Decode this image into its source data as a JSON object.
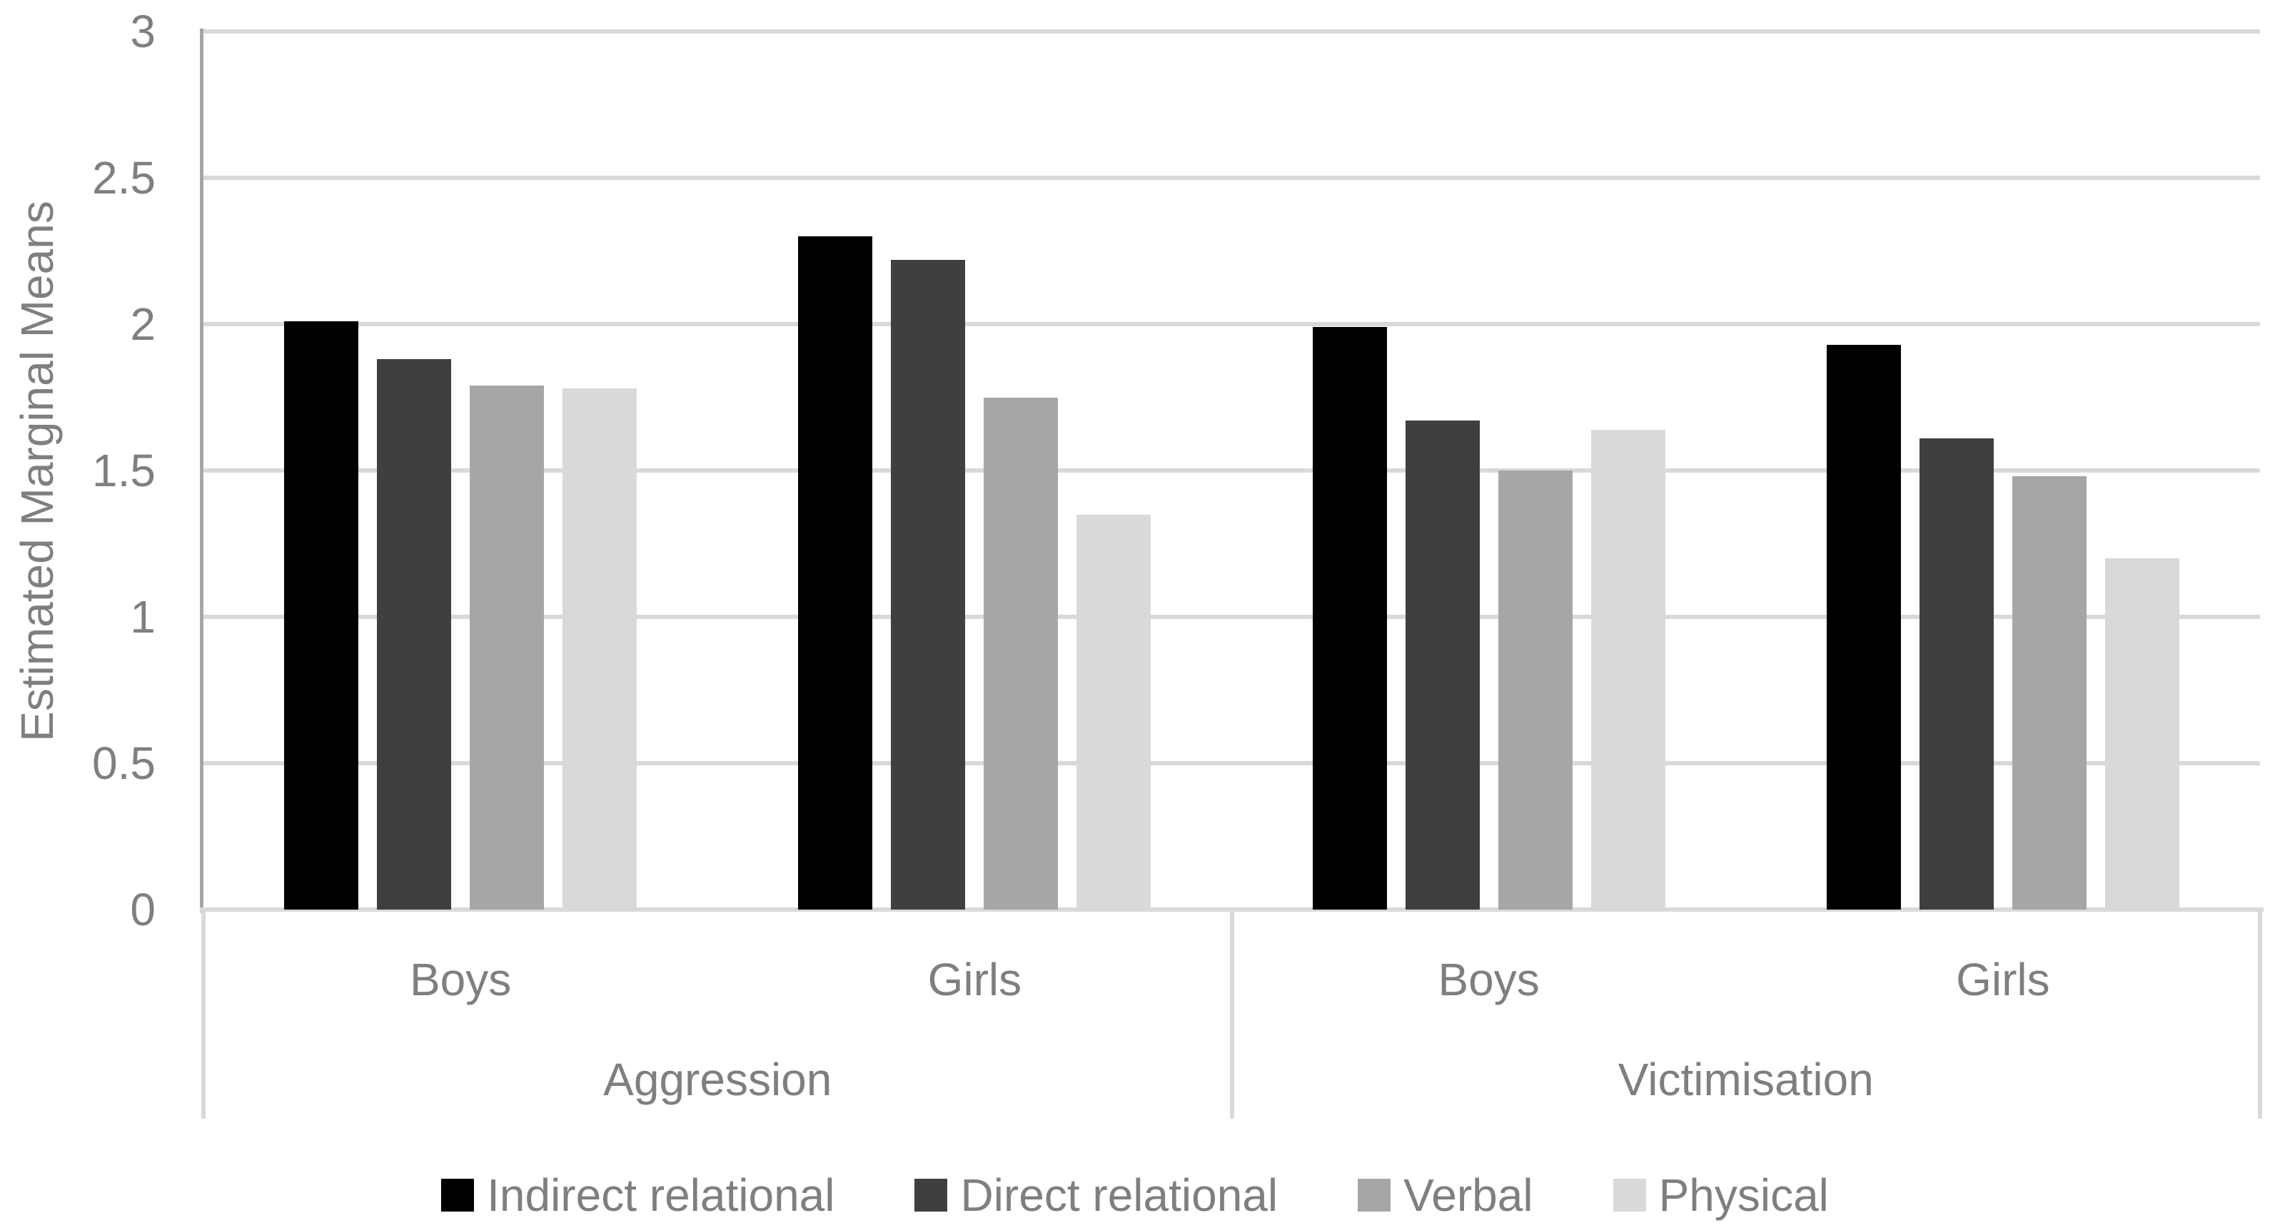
{
  "chart_data": {
    "type": "bar",
    "title": "",
    "ylabel": "Estimated Marginal Means",
    "xlabel": "",
    "ylim": [
      0,
      3
    ],
    "ytick_step": 0.5,
    "yticks": [
      3,
      2.5,
      2,
      1.5,
      1,
      0.5,
      0
    ],
    "ytick_labels": [
      "3",
      "2.5",
      "2",
      "1.5",
      "1",
      "0.5",
      "0"
    ],
    "grid": "horizontal",
    "legend_position": "bottom",
    "panels": [
      {
        "label": "Aggression",
        "groups": [
          "Boys",
          "Girls"
        ]
      },
      {
        "label": "Victimisation",
        "groups": [
          "Boys",
          "Girls"
        ]
      }
    ],
    "category_order": [
      "Aggression / Boys",
      "Aggression / Girls",
      "Victimisation / Boys",
      "Victimisation / Girls"
    ],
    "series": [
      {
        "name": "Indirect relational",
        "color": "#000000",
        "values": [
          2.01,
          2.3,
          1.99,
          1.93
        ]
      },
      {
        "name": "Direct relational",
        "color": "#3f3f3f",
        "values": [
          1.88,
          2.22,
          1.67,
          1.61
        ]
      },
      {
        "name": "Verbal",
        "color": "#a6a6a6",
        "values": [
          1.79,
          1.75,
          1.5,
          1.48
        ]
      },
      {
        "name": "Physical",
        "color": "#d9d9d9",
        "values": [
          1.78,
          1.35,
          1.64,
          1.2
        ]
      }
    ],
    "colors": {
      "background": "#ffffff",
      "text": "#7f7f7f",
      "axis_line": "#a6a6a6",
      "gridline": "#d9d9d9"
    }
  }
}
